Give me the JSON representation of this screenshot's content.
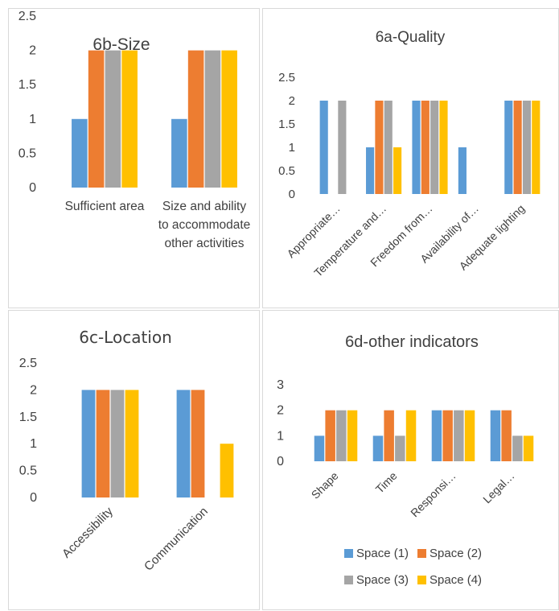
{
  "series_colors": [
    "#5b9bd5",
    "#ed7d31",
    "#a5a5a5",
    "#ffc000"
  ],
  "chart_data": [
    {
      "type": "bar",
      "title": "6b-Size",
      "categories": [
        "Sufficient area",
        "Size and ability to accommodate other activities"
      ],
      "category_lines": [
        [
          "Sufficient area"
        ],
        [
          "Size and ability",
          "to accommodate",
          "other activities"
        ]
      ],
      "series": [
        {
          "values": [
            1,
            1
          ]
        },
        {
          "values": [
            2,
            2
          ]
        },
        {
          "values": [
            2,
            2
          ]
        },
        {
          "values": [
            2,
            2
          ]
        }
      ],
      "yticks": [
        "0",
        "0.5",
        "1",
        "1.5",
        "2",
        "2.5"
      ],
      "ylim": [
        0,
        2.5
      ],
      "grid": false
    },
    {
      "type": "bar",
      "title": "6a-Quality",
      "categories": [
        "Appropriate…",
        "Temperature and…",
        "Freedom from…",
        "Availability of…",
        "Adequate lighting"
      ],
      "series": [
        {
          "values": [
            2,
            1,
            2,
            1,
            2
          ]
        },
        {
          "values": [
            0,
            2,
            2,
            0,
            2
          ]
        },
        {
          "values": [
            2,
            2,
            2,
            0,
            2
          ]
        },
        {
          "values": [
            0,
            1,
            2,
            0,
            2
          ]
        }
      ],
      "yticks": [
        "0",
        "0.5",
        "1",
        "1.5",
        "2",
        "2.5"
      ],
      "ylim": [
        0,
        2.5
      ],
      "grid": false
    },
    {
      "type": "bar",
      "title": "6c-Location",
      "categories": [
        "Accessibility",
        "Communication"
      ],
      "series": [
        {
          "values": [
            2,
            2
          ]
        },
        {
          "values": [
            2,
            2
          ]
        },
        {
          "values": [
            2,
            0
          ]
        },
        {
          "values": [
            2,
            1
          ]
        }
      ],
      "yticks": [
        "0",
        "0.5",
        "1",
        "1.5",
        "2",
        "2.5"
      ],
      "ylim": [
        0,
        2.5
      ],
      "grid": false
    },
    {
      "type": "bar",
      "title": "6d-other indicators",
      "categories": [
        "Shape",
        "Time",
        "Responsi…",
        "Legal…"
      ],
      "series": [
        {
          "name": "Space (1)",
          "values": [
            1,
            1,
            2,
            2
          ]
        },
        {
          "name": "Space (2)",
          "values": [
            2,
            2,
            2,
            2
          ]
        },
        {
          "name": "Space (3)",
          "values": [
            2,
            1,
            2,
            1
          ]
        },
        {
          "name": "Space (4)",
          "values": [
            2,
            2,
            2,
            1
          ]
        }
      ],
      "yticks": [
        "0",
        "1",
        "2",
        "3"
      ],
      "ylim": [
        0,
        3
      ],
      "grid": false,
      "legend": "bottom"
    }
  ]
}
